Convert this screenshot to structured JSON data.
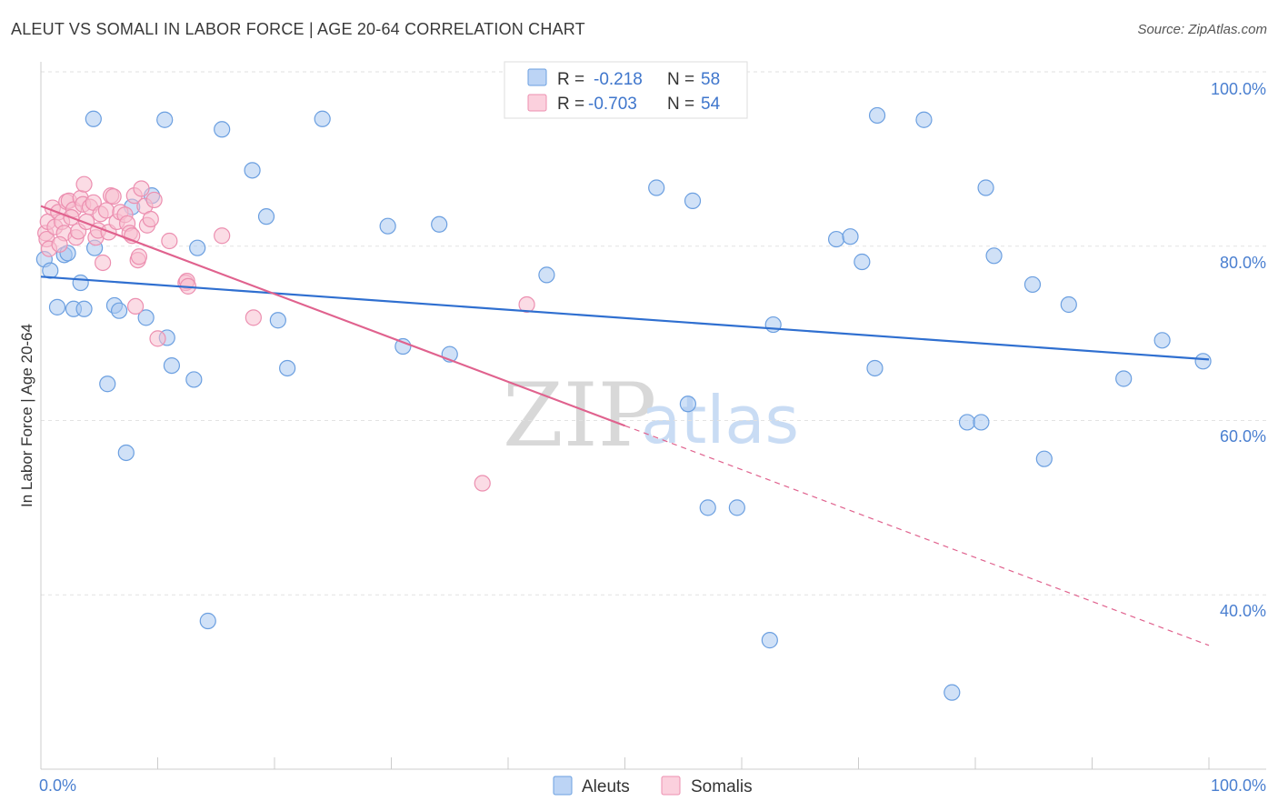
{
  "title": "ALEUT VS SOMALI IN LABOR FORCE | AGE 20-64 CORRELATION CHART",
  "source": "Source: ZipAtlas.com",
  "chart_data": {
    "type": "scatter",
    "title": "ALEUT VS SOMALI IN LABOR FORCE | AGE 20-64 CORRELATION CHART",
    "xlabel": "",
    "ylabel": "In Labor Force | Age 20-64",
    "xlim": [
      0,
      100
    ],
    "ylim": [
      20,
      100
    ],
    "x_tick_labels": [
      "0.0%",
      "100.0%"
    ],
    "y_ticks": [
      {
        "value": 100,
        "label": "100.0%"
      },
      {
        "value": 80,
        "label": "80.0%"
      },
      {
        "value": 60,
        "label": "60.0%"
      },
      {
        "value": 40,
        "label": "40.0%"
      }
    ],
    "watermark": {
      "zip": "ZIP",
      "atlas": "atlas"
    },
    "legend": [
      {
        "r_label": "R =",
        "r_value": "-0.218",
        "n_label": "N =",
        "n_value": "58"
      },
      {
        "r_label": "R =",
        "r_value": "-0.703",
        "n_label": "N =",
        "n_value": "54"
      }
    ],
    "series": [
      {
        "name": "Aleuts",
        "color": "#a9c8f0",
        "stroke": "#6b9fe0",
        "line_color": "#2f6fd0",
        "trend": {
          "x0": 0,
          "y0": 76.5,
          "x1": 100,
          "y1": 67.0,
          "solid_to": 100
        },
        "points": [
          [
            0.3,
            78.5
          ],
          [
            0.8,
            77.2
          ],
          [
            1.4,
            73.0
          ],
          [
            2.0,
            79.0
          ],
          [
            2.3,
            79.2
          ],
          [
            2.8,
            72.8
          ],
          [
            3.4,
            75.8
          ],
          [
            3.7,
            72.8
          ],
          [
            4.5,
            94.6
          ],
          [
            4.6,
            79.8
          ],
          [
            5.7,
            64.2
          ],
          [
            6.3,
            73.2
          ],
          [
            6.7,
            72.6
          ],
          [
            7.3,
            56.3
          ],
          [
            7.8,
            84.5
          ],
          [
            9.0,
            71.8
          ],
          [
            9.5,
            85.8
          ],
          [
            10.6,
            94.5
          ],
          [
            10.8,
            69.5
          ],
          [
            11.2,
            66.3
          ],
          [
            13.1,
            64.7
          ],
          [
            13.4,
            79.8
          ],
          [
            14.3,
            37.0
          ],
          [
            15.5,
            93.4
          ],
          [
            18.1,
            88.7
          ],
          [
            19.3,
            83.4
          ],
          [
            20.3,
            71.5
          ],
          [
            21.1,
            66.0
          ],
          [
            24.1,
            94.6
          ],
          [
            29.7,
            82.3
          ],
          [
            31.0,
            68.5
          ],
          [
            34.1,
            82.5
          ],
          [
            35.0,
            67.6
          ],
          [
            43.3,
            76.7
          ],
          [
            52.7,
            86.7
          ],
          [
            55.4,
            61.9
          ],
          [
            55.8,
            85.2
          ],
          [
            57.1,
            50.0
          ],
          [
            59.6,
            50.0
          ],
          [
            62.4,
            34.8
          ],
          [
            62.7,
            71.0
          ],
          [
            68.1,
            80.8
          ],
          [
            69.3,
            81.1
          ],
          [
            70.3,
            78.2
          ],
          [
            71.4,
            66.0
          ],
          [
            71.6,
            95.0
          ],
          [
            75.6,
            94.5
          ],
          [
            78.0,
            28.8
          ],
          [
            79.3,
            59.8
          ],
          [
            80.5,
            59.8
          ],
          [
            80.9,
            86.7
          ],
          [
            81.6,
            78.9
          ],
          [
            84.9,
            75.6
          ],
          [
            85.9,
            55.6
          ],
          [
            88.0,
            73.3
          ],
          [
            92.7,
            64.8
          ],
          [
            96.0,
            69.2
          ],
          [
            99.5,
            66.8
          ]
        ]
      },
      {
        "name": "Somalis",
        "color": "#f8bfd0",
        "stroke": "#ec8fb0",
        "line_color": "#e0628e",
        "trend": {
          "x0": 0,
          "y0": 84.6,
          "x1": 100,
          "y1": 34.2,
          "solid_to": 50
        },
        "points": [
          [
            0.4,
            81.5
          ],
          [
            0.5,
            80.8
          ],
          [
            0.6,
            82.8
          ],
          [
            0.7,
            79.7
          ],
          [
            1.0,
            84.4
          ],
          [
            1.2,
            82.2
          ],
          [
            1.5,
            83.9
          ],
          [
            1.8,
            82.8
          ],
          [
            2.0,
            81.5
          ],
          [
            2.2,
            85.1
          ],
          [
            2.4,
            85.2
          ],
          [
            2.8,
            84.2
          ],
          [
            3.0,
            81.0
          ],
          [
            3.2,
            81.7
          ],
          [
            3.4,
            85.5
          ],
          [
            3.6,
            84.8
          ],
          [
            3.7,
            87.1
          ],
          [
            3.9,
            82.8
          ],
          [
            4.2,
            84.5
          ],
          [
            4.5,
            85.0
          ],
          [
            4.7,
            81.0
          ],
          [
            4.9,
            81.8
          ],
          [
            5.1,
            83.7
          ],
          [
            5.3,
            78.1
          ],
          [
            5.6,
            84.1
          ],
          [
            5.8,
            81.6
          ],
          [
            6.0,
            85.8
          ],
          [
            6.2,
            85.7
          ],
          [
            6.5,
            82.8
          ],
          [
            6.8,
            83.9
          ],
          [
            7.2,
            83.6
          ],
          [
            7.4,
            82.6
          ],
          [
            7.6,
            81.5
          ],
          [
            7.8,
            81.2
          ],
          [
            8.0,
            85.8
          ],
          [
            8.1,
            73.1
          ],
          [
            8.3,
            78.4
          ],
          [
            8.4,
            78.8
          ],
          [
            8.6,
            86.6
          ],
          [
            8.9,
            84.6
          ],
          [
            9.1,
            82.4
          ],
          [
            9.4,
            83.1
          ],
          [
            9.7,
            85.3
          ],
          [
            10.0,
            69.4
          ],
          [
            11.0,
            80.6
          ],
          [
            12.4,
            75.8
          ],
          [
            12.5,
            76.0
          ],
          [
            12.6,
            75.4
          ],
          [
            15.5,
            81.2
          ],
          [
            18.2,
            71.8
          ],
          [
            37.8,
            52.8
          ],
          [
            41.6,
            73.3
          ],
          [
            1.6,
            80.2
          ],
          [
            2.6,
            83.3
          ]
        ]
      }
    ]
  }
}
